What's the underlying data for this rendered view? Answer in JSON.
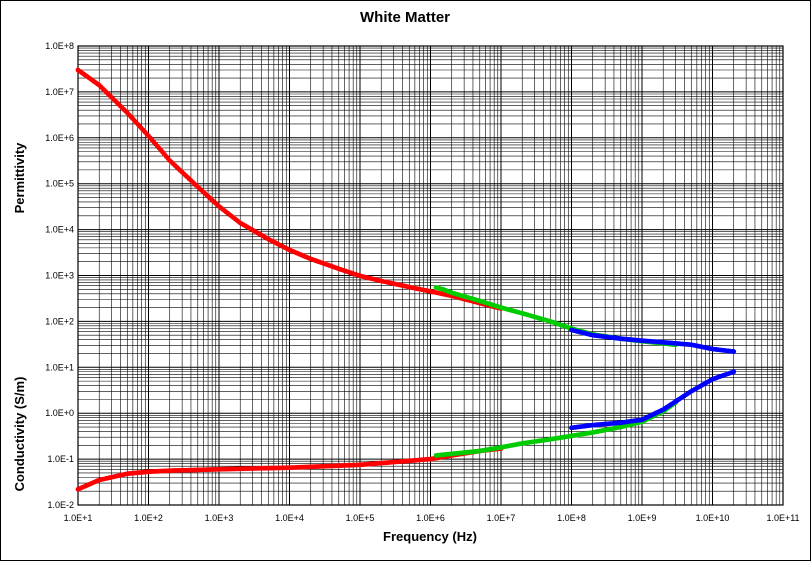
{
  "chart_data": {
    "type": "scatter",
    "title": "White Matter",
    "xlabel": "Frequency (Hz)",
    "ylabel_upper": "Permittivity",
    "ylabel_lower": "Conductivity (S/m)",
    "xscale": "log",
    "yscale": "log",
    "xlim": [
      10,
      100000000000
    ],
    "ylim": [
      0.01,
      100000000
    ],
    "grid": true,
    "x_tick_labels": [
      "1.0E+1",
      "1.0E+2",
      "1.0E+3",
      "1.0E+4",
      "1.0E+5",
      "1.0E+6",
      "1.0E+7",
      "1.0E+8",
      "1.0E+9",
      "1.0E+10",
      "1.0E+11"
    ],
    "y_tick_labels": [
      "1.0E-2",
      "1.0E-1",
      "1.0E+0",
      "1.0E+1",
      "1.0E+2",
      "1.0E+3",
      "1.0E+4",
      "1.0E+5",
      "1.0E+6",
      "1.0E+7",
      "1.0E+8"
    ],
    "colors": {
      "red": "#ff0000",
      "green": "#00cc00",
      "blue": "#0000ff"
    },
    "series": [
      {
        "color": "#ff0000",
        "quantity": "permittivity",
        "x": [
          10,
          20,
          50,
          100,
          200,
          500,
          1000,
          2000,
          5000,
          10000,
          20000,
          50000,
          100000,
          200000,
          500000,
          1000000,
          2000000,
          5000000,
          10000000
        ],
        "y": [
          30000000,
          14000000,
          3500000,
          1100000,
          320000,
          85000,
          32000,
          14000,
          6200,
          3600,
          2300,
          1400,
          980,
          760,
          560,
          450,
          360,
          250,
          190
        ]
      },
      {
        "color": "#00cc00",
        "quantity": "permittivity",
        "x": [
          1200000,
          1500000,
          2000000,
          5000000,
          10000000,
          20000000,
          50000000,
          100000000,
          200000000,
          500000000,
          1000000000,
          3000000000
        ],
        "y": [
          550,
          500,
          420,
          280,
          200,
          150,
          100,
          70,
          52,
          42,
          37,
          31
        ]
      },
      {
        "color": "#0000ff",
        "quantity": "permittivity",
        "x": [
          100000000,
          200000000,
          500000000,
          1000000000,
          2000000000,
          5000000000,
          10000000000,
          20000000000
        ],
        "y": [
          65,
          50,
          42,
          38,
          35,
          31,
          25,
          22
        ]
      },
      {
        "color": "#ff0000",
        "quantity": "conductivity",
        "x": [
          10,
          20,
          50,
          100,
          200,
          500,
          1000,
          10000,
          100000,
          1000000,
          2000000,
          5000000,
          10000000
        ],
        "y": [
          0.022,
          0.035,
          0.048,
          0.053,
          0.056,
          0.058,
          0.06,
          0.065,
          0.075,
          0.1,
          0.12,
          0.15,
          0.17
        ]
      },
      {
        "color": "#00cc00",
        "quantity": "conductivity",
        "x": [
          1200000,
          2000000,
          5000000,
          10000000,
          20000000,
          50000000,
          100000000,
          200000000,
          500000000,
          1000000000,
          2000000000,
          3000000000
        ],
        "y": [
          0.12,
          0.13,
          0.15,
          0.18,
          0.22,
          0.27,
          0.32,
          0.38,
          0.5,
          0.65,
          1.1,
          1.7
        ]
      },
      {
        "color": "#0000ff",
        "quantity": "conductivity",
        "x": [
          100000000,
          200000000,
          500000000,
          1000000000,
          2000000000,
          5000000000,
          10000000000,
          20000000000
        ],
        "y": [
          0.48,
          0.55,
          0.62,
          0.72,
          1.2,
          3.0,
          5.5,
          8.0
        ]
      }
    ]
  }
}
